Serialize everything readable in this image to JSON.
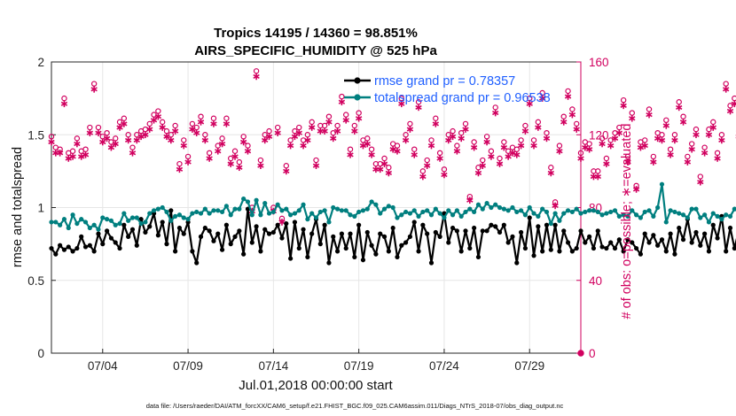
{
  "chart_data": {
    "type": "line",
    "title": "Tropics 14195 / 14360 = 98.851%",
    "subtitle": "AIRS_SPECIFIC_HUMIDITY @ 525 hPa",
    "xlabel": "Jul.01,2018 00:00:00 start",
    "ylabel": "rmse and totalspread",
    "ylabel_right": "# of obs: o=possible; ∗=evaluated",
    "xlim": [
      1,
      32
    ],
    "ylim": [
      0,
      2
    ],
    "ylim_right": [
      0,
      160
    ],
    "xticks": [
      {
        "x": 4,
        "label": "07/04"
      },
      {
        "x": 9,
        "label": "07/09"
      },
      {
        "x": 14,
        "label": "07/14"
      },
      {
        "x": 19,
        "label": "07/19"
      },
      {
        "x": 24,
        "label": "07/24"
      },
      {
        "x": 29,
        "label": "07/29"
      }
    ],
    "yticks": [
      "0",
      "0.5",
      "1",
      "1.5",
      "2"
    ],
    "yticks_right": [
      "0",
      "40",
      "80",
      "120",
      "160"
    ],
    "grid": true,
    "legend_position": "top-right",
    "series": [
      {
        "name": "rmse grand pr = 0.78357",
        "color": "#000000",
        "x_start": 1.0,
        "x_step": 0.25,
        "values": [
          0.72,
          0.68,
          0.74,
          0.71,
          0.73,
          0.7,
          0.72,
          0.8,
          0.73,
          0.74,
          0.7,
          0.82,
          0.75,
          0.84,
          0.79,
          0.76,
          0.72,
          0.88,
          0.8,
          0.85,
          0.74,
          0.92,
          0.83,
          0.87,
          0.96,
          0.81,
          0.9,
          0.75,
          0.98,
          0.7,
          0.86,
          0.82,
          0.9,
          0.7,
          0.62,
          0.8,
          0.86,
          0.84,
          0.77,
          0.82,
          0.71,
          0.88,
          0.75,
          0.8,
          0.84,
          0.68,
          0.99,
          0.76,
          0.87,
          0.7,
          0.85,
          0.82,
          0.83,
          0.88,
          0.79,
          0.89,
          0.65,
          0.9,
          0.72,
          0.85,
          0.66,
          0.82,
          0.92,
          0.75,
          0.88,
          0.62,
          0.8,
          0.7,
          0.82,
          0.72,
          0.82,
          0.66,
          0.88,
          0.64,
          0.83,
          0.74,
          0.68,
          0.82,
          0.8,
          0.7,
          0.86,
          0.66,
          0.74,
          0.76,
          0.8,
          0.9,
          0.7,
          0.88,
          0.82,
          0.62,
          0.83,
          0.8,
          0.96,
          0.76,
          0.86,
          0.84,
          0.7,
          0.84,
          0.72,
          0.86,
          0.66,
          0.84,
          0.84,
          0.88,
          0.87,
          0.83,
          0.88,
          0.76,
          0.8,
          0.62,
          0.83,
          0.72,
          0.93,
          0.67,
          0.87,
          0.7,
          0.88,
          0.71,
          0.88,
          0.7,
          0.84,
          0.76,
          0.7,
          0.72,
          0.84,
          0.76,
          0.8,
          0.72,
          0.84,
          0.73,
          0.72,
          0.76,
          0.72,
          0.78,
          0.7,
          0.78,
          0.76,
          0.72,
          0.68,
          0.82,
          0.76,
          0.81,
          0.74,
          0.78,
          0.7,
          0.82,
          0.68,
          0.86,
          0.78,
          0.92,
          0.76,
          0.83,
          0.74,
          0.82,
          0.7,
          0.88,
          0.79,
          0.94,
          0.7,
          0.86,
          0.72,
          0.84,
          0.66,
          0.88,
          0.74,
          0.92,
          0.72,
          0.78,
          0.83,
          0.82,
          0.68,
          0.76,
          0.78
        ]
      },
      {
        "name": "totalspread grand pr = 0.96538",
        "color": "#007f7f",
        "x_start": 1.0,
        "x_step": 0.25,
        "values": [
          0.9,
          0.9,
          0.88,
          0.92,
          0.86,
          0.95,
          0.89,
          0.92,
          0.9,
          0.86,
          0.88,
          0.85,
          0.93,
          0.92,
          0.91,
          0.88,
          0.89,
          0.96,
          0.91,
          0.93,
          0.93,
          0.89,
          0.9,
          0.96,
          0.98,
          0.99,
          1.0,
          0.97,
          0.91,
          0.94,
          0.95,
          0.93,
          0.92,
          0.96,
          0.97,
          0.96,
          0.99,
          0.96,
          0.98,
          0.98,
          0.97,
          1.01,
          0.95,
          0.99,
          0.99,
          1.06,
          1.04,
          0.95,
          1.05,
          0.95,
          1.03,
          0.96,
          0.97,
          1.02,
          0.98,
          0.99,
          0.95,
          0.96,
          0.98,
          1.02,
          0.92,
          0.96,
          0.93,
          0.97,
          0.98,
          0.9,
          1.0,
          0.99,
          0.98,
          0.98,
          0.95,
          0.94,
          0.97,
          0.98,
          0.99,
          1.04,
          1.02,
          0.96,
          0.99,
          1.01,
          1.0,
          0.93,
          0.95,
          0.97,
          0.96,
          0.98,
          0.94,
          0.97,
          0.98,
          0.95,
          0.99,
          0.96,
          0.93,
          0.98,
          0.95,
          0.98,
          0.94,
          0.97,
          0.99,
          0.97,
          1.02,
          0.99,
          1.03,
          1.0,
          1.02,
          1.0,
          0.99,
          0.98,
          1.0,
          0.97,
          0.98,
          0.95,
          1.0,
          0.96,
          0.94,
          0.99,
          0.97,
          0.89,
          0.96,
          0.91,
          0.96,
          0.98,
          0.97,
          0.99,
          0.96,
          0.97,
          0.98,
          0.98,
          0.97,
          0.95,
          0.96,
          0.97,
          0.98,
          0.94,
          0.95,
          0.94,
          0.98,
          0.95,
          0.93,
          0.97,
          0.98,
          0.94,
          1.0,
          1.16,
          0.9,
          0.98,
          0.97,
          0.96,
          0.95,
          0.93,
          0.99,
          0.99,
          0.93,
          0.95,
          0.9,
          0.96,
          0.94,
          0.92,
          0.95,
          0.94,
          0.99,
          0.97,
          0.96,
          0.91,
          0.99,
          0.94,
          1.0,
          0.97,
          0.94,
          0.96,
          0.93
        ]
      }
    ],
    "obs_series": {
      "axis": "right",
      "color": "#d1005f",
      "x_start": 1.0,
      "x_step": 0.25,
      "possible": [
        119,
        113,
        112,
        140,
        110,
        111,
        118,
        111,
        112,
        124,
        148,
        124,
        119,
        121,
        116,
        118,
        127,
        129,
        120,
        113,
        120,
        122,
        123,
        126,
        131,
        133,
        127,
        122,
        120,
        125,
        104,
        117,
        108,
        126,
        124,
        130,
        120,
        110,
        129,
        114,
        118,
        129,
        107,
        111,
        105,
        119,
        114,
        80,
        155,
        106,
        120,
        122,
        80,
        124,
        74,
        103,
        117,
        122,
        124,
        117,
        120,
        127,
        106,
        125,
        125,
        130,
        121,
        125,
        141,
        131,
        112,
        125,
        132,
        117,
        118,
        112,
        104,
        104,
        107,
        102,
        115,
        114,
        140,
        120,
        126,
        112,
        138,
        100,
        106,
        117,
        129,
        110,
        101,
        120,
        122,
        114,
        121,
        126,
        86,
        116,
        102,
        106,
        119,
        111,
        135,
        107,
        116,
        111,
        113,
        112,
        117,
        125,
        140,
        117,
        127,
        143,
        121,
        102,
        83,
        114,
        130,
        144,
        134,
        126,
        110,
        116,
        115,
        100,
        100,
        118,
        107,
        117,
        121,
        124,
        139,
        108,
        132,
        92,
        116,
        117,
        134,
        108,
        121,
        120,
        128,
        112,
        120,
        138,
        130,
        108,
        115,
        123,
        97,
        113,
        123,
        127,
        110,
        120,
        148,
        136,
        140,
        122,
        93,
        102,
        88,
        122,
        120,
        83,
        110,
        88,
        121,
        125
      ],
      "evaluated": [
        116,
        110,
        110,
        137,
        107,
        108,
        115,
        108,
        109,
        121,
        145,
        121,
        116,
        118,
        113,
        115,
        124,
        126,
        117,
        110,
        117,
        119,
        120,
        123,
        128,
        130,
        124,
        119,
        117,
        122,
        101,
        114,
        105,
        123,
        121,
        127,
        117,
        107,
        126,
        111,
        115,
        126,
        104,
        108,
        102,
        116,
        111,
        78,
        152,
        103,
        117,
        119,
        78,
        121,
        72,
        100,
        114,
        119,
        121,
        114,
        117,
        124,
        103,
        122,
        122,
        127,
        118,
        122,
        138,
        128,
        109,
        122,
        129,
        114,
        115,
        109,
        101,
        101,
        104,
        99,
        112,
        111,
        137,
        117,
        123,
        109,
        135,
        97,
        103,
        114,
        126,
        107,
        98,
        117,
        119,
        111,
        118,
        123,
        84,
        113,
        99,
        103,
        116,
        108,
        132,
        104,
        113,
        108,
        110,
        109,
        114,
        122,
        137,
        114,
        124,
        140,
        118,
        99,
        81,
        111,
        127,
        141,
        131,
        123,
        107,
        113,
        112,
        97,
        97,
        115,
        104,
        114,
        118,
        121,
        136,
        105,
        129,
        90,
        113,
        114,
        131,
        105,
        118,
        117,
        125,
        109,
        117,
        135,
        127,
        105,
        112,
        120,
        94,
        110,
        120,
        124,
        107,
        117,
        145,
        133,
        137,
        119,
        90,
        99,
        85,
        119,
        117,
        80,
        107,
        85,
        118,
        122
      ]
    },
    "final_obs_point": {
      "x": 32,
      "possible": 0,
      "evaluated": 0
    }
  },
  "footer": "data file: /Users/raeder/DAI/ATM_forcXX/CAM6_setup/f.e21.FHIST_BGC.f09_025.CAM6assim.011/Diags_NTrS_2018-07/obs_diag_output.nc"
}
